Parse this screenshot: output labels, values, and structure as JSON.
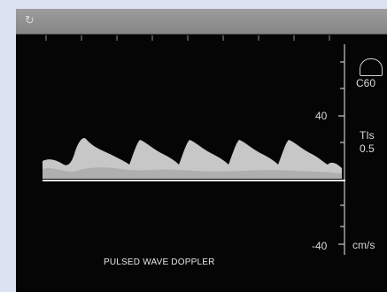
{
  "image": {
    "caption": "PULSED WAVE DOPPLER",
    "scale": {
      "top_value": "40",
      "bottom_value": "-40",
      "unit": "cm/s"
    },
    "probe": {
      "name": "C60",
      "index_label": "TIs",
      "index_value": "0.5"
    },
    "toolbar_icon": "refresh-icon",
    "colors": {
      "background": "#050505",
      "waveform": "#d8d8d8",
      "frame": "#dbe3f3"
    }
  }
}
